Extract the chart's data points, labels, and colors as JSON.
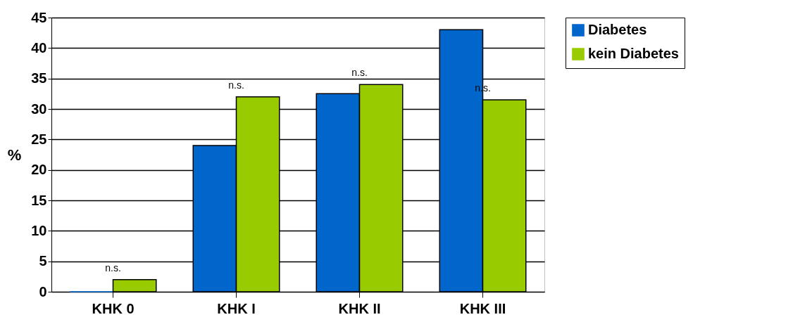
{
  "chart_data": {
    "type": "bar",
    "categories": [
      "KHK 0",
      "KHK I",
      "KHK II",
      "KHK III"
    ],
    "ylabel": "%",
    "series": [
      {
        "name": "Diabetes",
        "color": "#0066cc",
        "values": [
          0,
          24,
          32.5,
          43
        ]
      },
      {
        "name": "kein Diabetes",
        "color": "#99cc00",
        "values": [
          2,
          32,
          34,
          31.5
        ]
      }
    ],
    "ylim": [
      0,
      45
    ],
    "yticks": [
      0,
      5,
      10,
      15,
      20,
      25,
      30,
      35,
      40,
      45
    ],
    "grid": "y",
    "legend": "right",
    "annotations": [
      "n.s.",
      "n.s.",
      "n.s.",
      "n.s."
    ]
  }
}
